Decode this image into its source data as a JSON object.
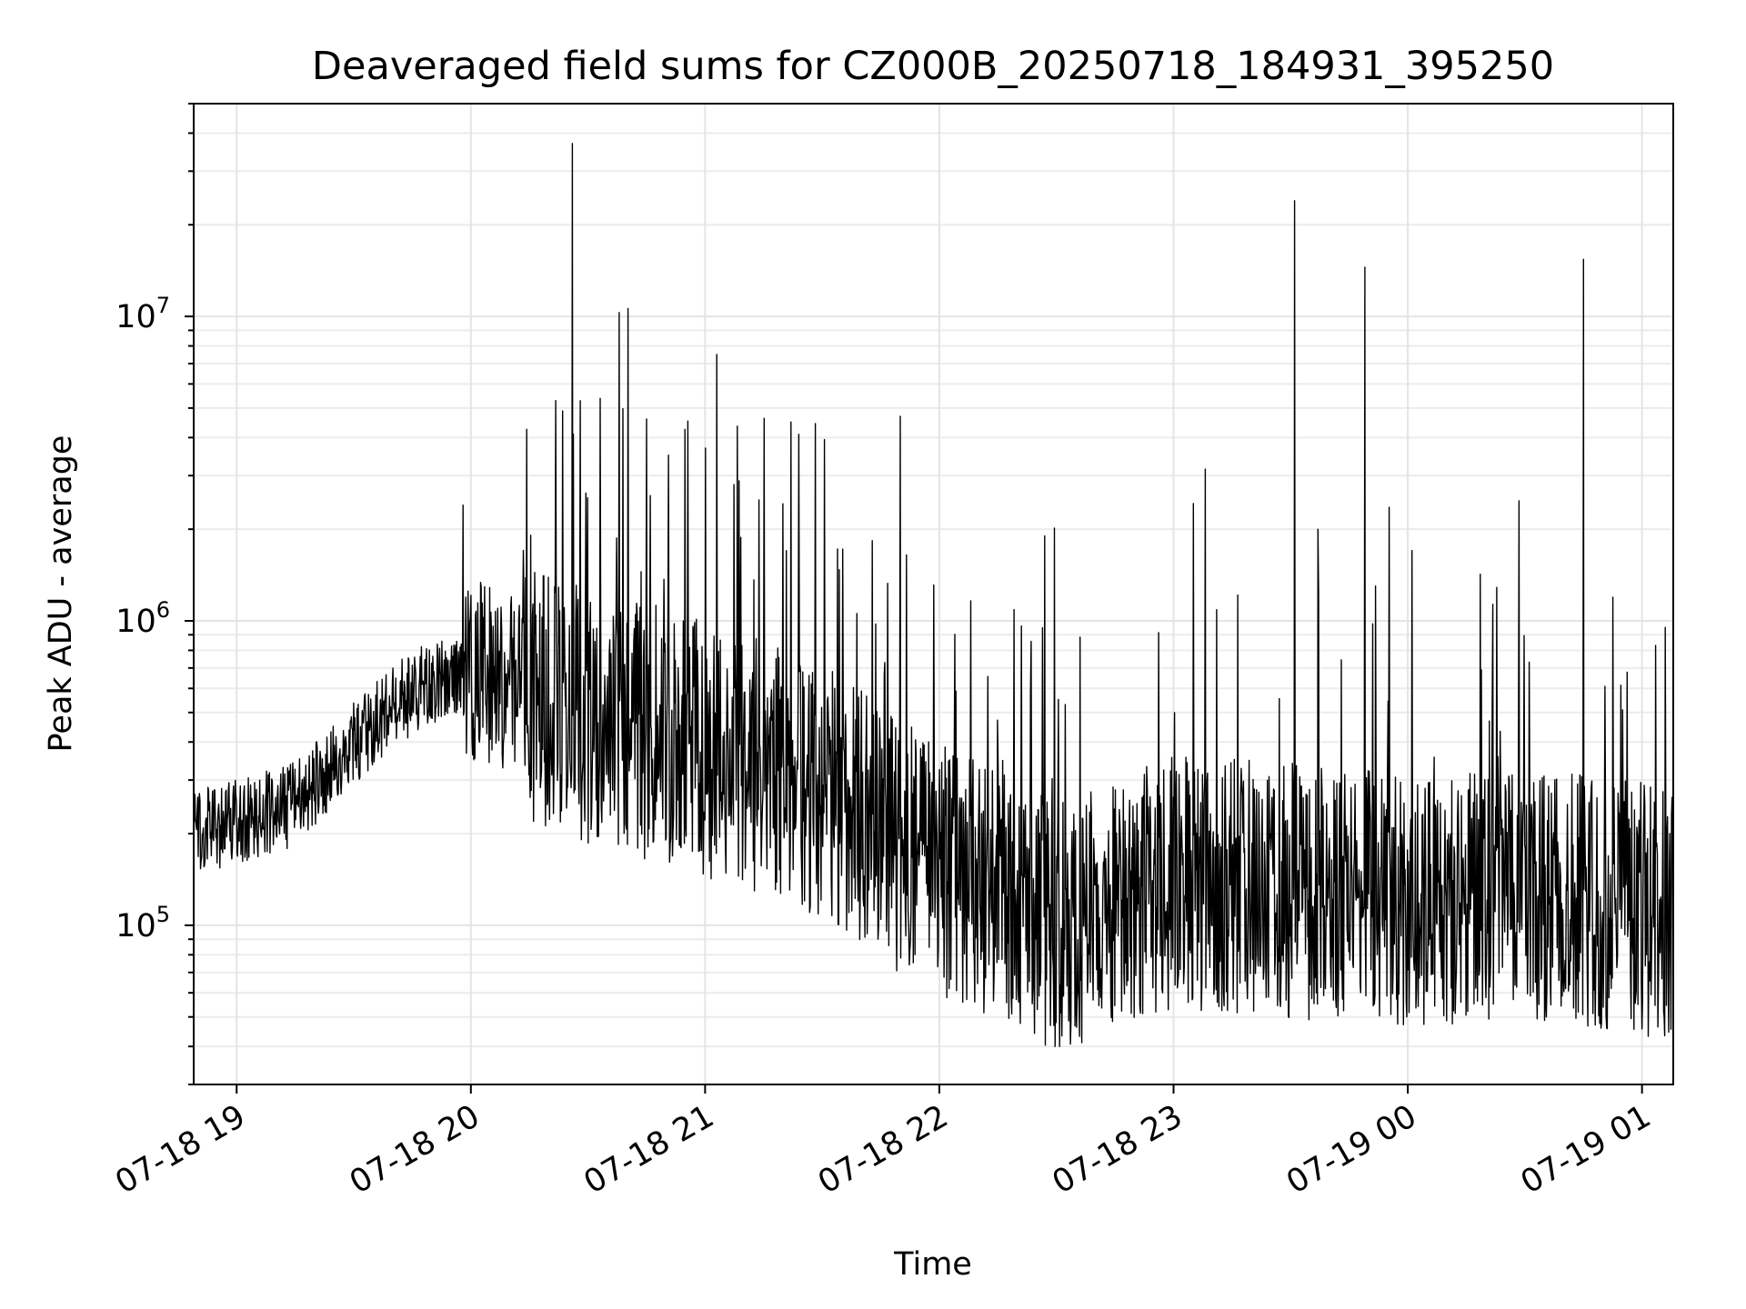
{
  "chart_data": {
    "type": "line",
    "title": "Deaveraged field sums for CZ000B_20250718_184931_395250",
    "xlabel": "Time",
    "ylabel": "Peak ADU - average",
    "yscale": "log",
    "ylim": [
      30000,
      50000000
    ],
    "xlim": [
      "2025-07-18 18:49",
      "2025-07-19 01:08"
    ],
    "grid": true,
    "legend": "none",
    "line_color": "#000000",
    "x_ticks": [
      {
        "time": "2025-07-18 19:00",
        "label": "07-18 19"
      },
      {
        "time": "2025-07-18 20:00",
        "label": "07-18 20"
      },
      {
        "time": "2025-07-18 21:00",
        "label": "07-18 21"
      },
      {
        "time": "2025-07-18 22:00",
        "label": "07-18 22"
      },
      {
        "time": "2025-07-18 23:00",
        "label": "07-18 23"
      },
      {
        "time": "2025-07-19 00:00",
        "label": "07-19 00"
      },
      {
        "time": "2025-07-19 01:00",
        "label": "07-19 01"
      }
    ],
    "y_ticks": [
      {
        "value": 100000,
        "base": "10",
        "exp": "5"
      },
      {
        "value": 1000000,
        "base": "10",
        "exp": "6"
      },
      {
        "value": 10000000,
        "base": "10",
        "exp": "7"
      }
    ],
    "series": [
      {
        "baseline": [
          [
            "2025-07-18 18:49",
            200000
          ],
          [
            "2025-07-18 19:15",
            250000
          ],
          [
            "2025-07-18 19:30",
            400000
          ],
          [
            "2025-07-18 19:45",
            580000
          ],
          [
            "2025-07-18 20:00",
            700000
          ],
          [
            "2025-07-18 20:30",
            480000
          ],
          [
            "2025-07-18 21:00",
            380000
          ],
          [
            "2025-07-18 21:30",
            280000
          ],
          [
            "2025-07-18 21:50",
            180000
          ],
          [
            "2025-07-18 22:00",
            150000
          ],
          [
            "2025-07-18 22:30",
            100000
          ],
          [
            "2025-07-18 23:00",
            140000
          ],
          [
            "2025-07-18 23:30",
            130000
          ],
          [
            "2025-07-19 00:00",
            120000
          ],
          [
            "2025-07-19 00:30",
            130000
          ],
          [
            "2025-07-19 01:08",
            110000
          ]
        ],
        "peaks": [
          [
            "2025-07-18 20:26",
            37000000
          ],
          [
            "2025-07-18 20:38",
            10300000
          ],
          [
            "2025-07-18 20:45",
            4600000
          ],
          [
            "2025-07-18 21:03",
            7500000
          ],
          [
            "2025-07-18 21:22",
            4500000
          ],
          [
            "2025-07-18 21:24",
            4100000
          ],
          [
            "2025-07-18 21:50",
            4700000
          ],
          [
            "2025-07-18 19:58",
            2400000
          ],
          [
            "2025-07-18 23:31",
            24000000
          ],
          [
            "2025-07-18 23:49",
            14500000
          ],
          [
            "2025-07-19 00:45",
            15400000
          ],
          [
            "2025-07-18 22:27",
            1900000
          ],
          [
            "2025-07-18 23:37",
            2000000
          ]
        ]
      }
    ]
  }
}
